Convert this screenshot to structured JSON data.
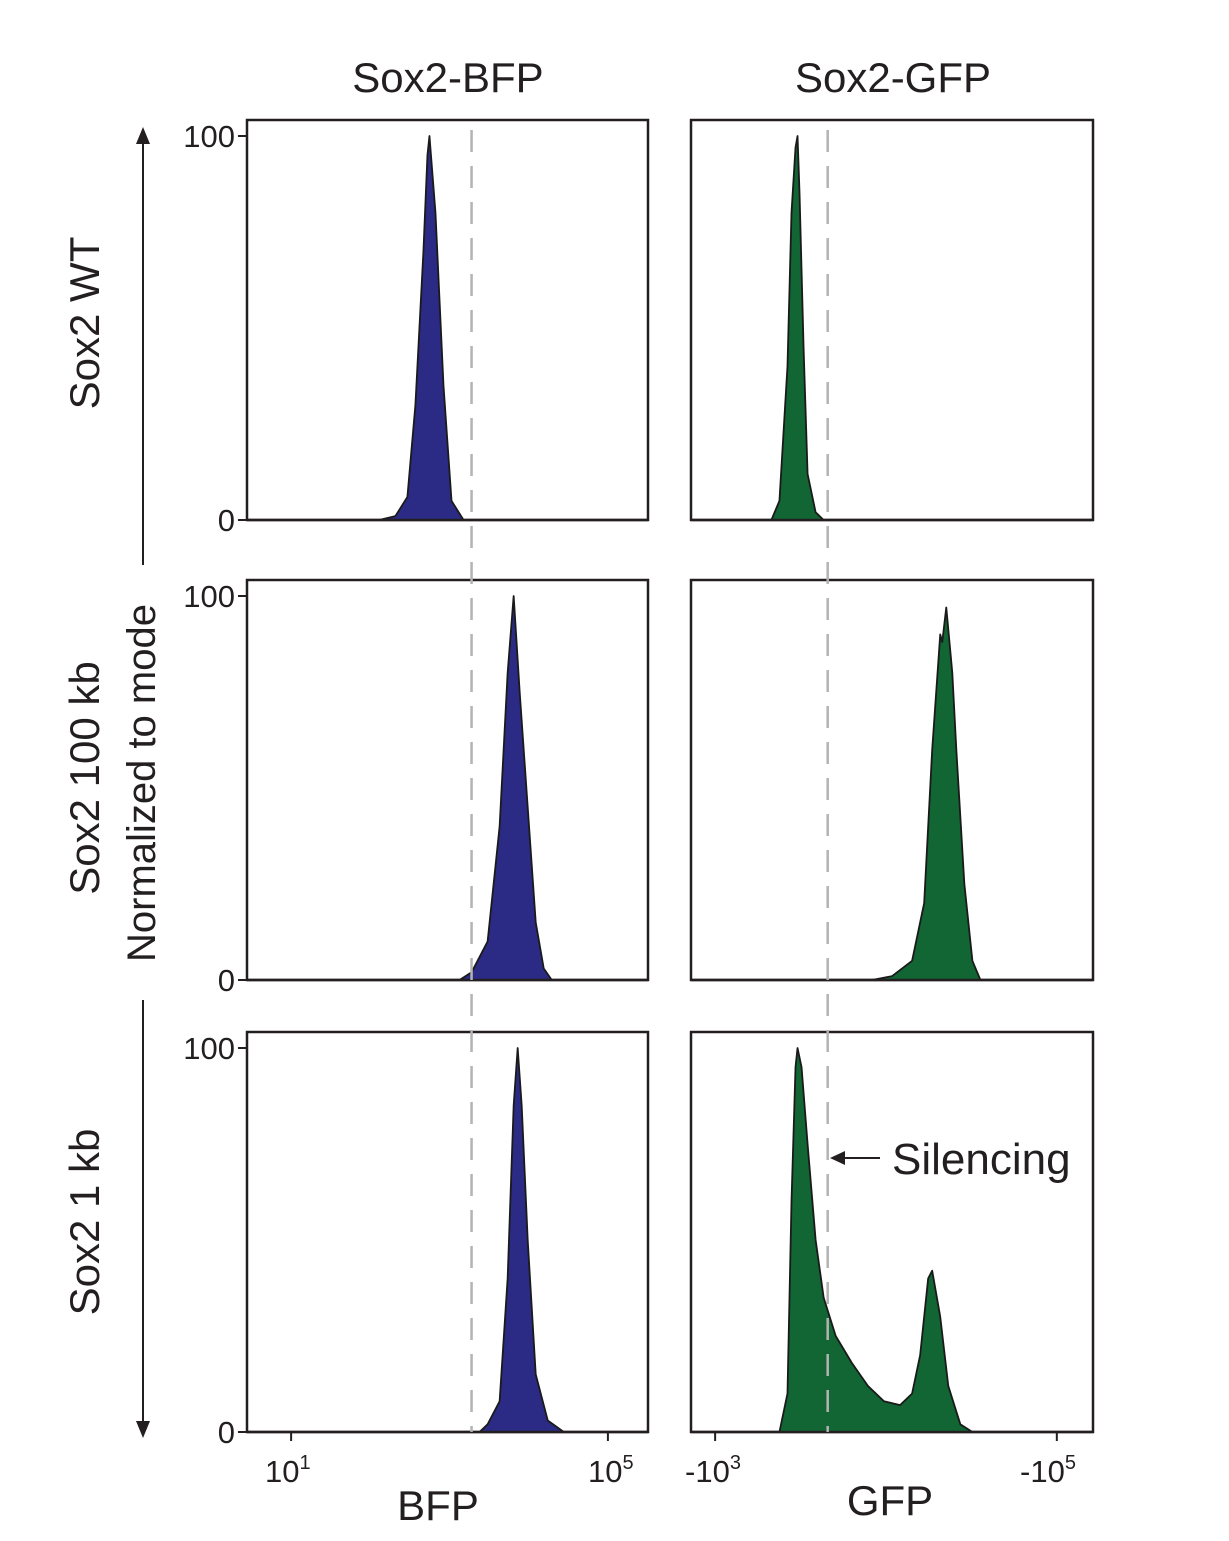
{
  "figure": {
    "columns": [
      "Sox2-BFP",
      "Sox2-GFP"
    ],
    "rows": [
      "Sox2 WT",
      "Sox2 100 kb",
      "Sox2 1 kb"
    ],
    "y_axis_title": "Normalized to mode",
    "y_ticks": [
      "0",
      "100"
    ],
    "x_axis": {
      "bfp": {
        "title": "BFP",
        "tick_left": {
          "base": "10",
          "exp": "1"
        },
        "tick_right": {
          "base": "10",
          "exp": "5"
        }
      },
      "gfp": {
        "title": "GFP",
        "tick_left": {
          "base": "-10",
          "exp": "3"
        },
        "tick_right": {
          "base": "-10",
          "exp": "5"
        }
      }
    },
    "annotation": "Silencing"
  },
  "colors": {
    "bfp_fill": "#2b2b86",
    "gfp_fill": "#116633",
    "outline": "#1a1a1a",
    "threshold_line": "#b3b3b3",
    "text": "#231f20"
  },
  "chart_data": [
    {
      "type": "area",
      "row": "Sox2 WT",
      "column": "Sox2-BFP",
      "color": "bfp",
      "x": [
        0.33,
        0.37,
        0.4,
        0.42,
        0.44,
        0.45,
        0.455,
        0.47,
        0.49,
        0.51,
        0.54
      ],
      "y": [
        0,
        1,
        6,
        30,
        70,
        95,
        100,
        80,
        35,
        5,
        0
      ],
      "ylim": [
        0,
        100
      ],
      "threshold": 0.56
    },
    {
      "type": "area",
      "row": "Sox2 WT",
      "column": "Sox2-GFP",
      "color": "gfp",
      "x": [
        0.2,
        0.22,
        0.24,
        0.25,
        0.26,
        0.265,
        0.27,
        0.28,
        0.29,
        0.31,
        0.33
      ],
      "y": [
        0,
        5,
        40,
        80,
        97,
        100,
        85,
        45,
        12,
        2,
        0
      ],
      "ylim": [
        0,
        100
      ],
      "threshold": 0.34
    },
    {
      "type": "area",
      "row": "Sox2 100 kb",
      "column": "Sox2-BFP",
      "color": "bfp",
      "x": [
        0.53,
        0.56,
        0.6,
        0.63,
        0.65,
        0.665,
        0.68,
        0.7,
        0.72,
        0.74,
        0.76
      ],
      "y": [
        0,
        2,
        10,
        40,
        80,
        100,
        75,
        45,
        15,
        3,
        0
      ],
      "ylim": [
        0,
        100
      ],
      "threshold": 0.56
    },
    {
      "type": "area",
      "row": "Sox2 100 kb",
      "column": "Sox2-GFP",
      "color": "gfp",
      "x": [
        0.45,
        0.5,
        0.55,
        0.58,
        0.6,
        0.62,
        0.625,
        0.635,
        0.65,
        0.66,
        0.68,
        0.7,
        0.72
      ],
      "y": [
        0,
        1,
        5,
        20,
        60,
        90,
        88,
        97,
        80,
        60,
        25,
        5,
        0
      ],
      "ylim": [
        0,
        100
      ],
      "threshold": 0.34
    },
    {
      "type": "area",
      "row": "Sox2 1 kb",
      "column": "Sox2-BFP",
      "color": "bfp",
      "x": [
        0.58,
        0.6,
        0.63,
        0.65,
        0.665,
        0.675,
        0.685,
        0.7,
        0.72,
        0.75,
        0.79
      ],
      "y": [
        0,
        2,
        8,
        40,
        85,
        100,
        85,
        50,
        15,
        3,
        0
      ],
      "ylim": [
        0,
        100
      ],
      "threshold": 0.56
    },
    {
      "type": "area",
      "row": "Sox2 1 kb",
      "column": "Sox2-GFP",
      "color": "gfp",
      "x": [
        0.22,
        0.24,
        0.25,
        0.26,
        0.265,
        0.275,
        0.29,
        0.31,
        0.33,
        0.36,
        0.4,
        0.44,
        0.48,
        0.52,
        0.55,
        0.57,
        0.59,
        0.6,
        0.62,
        0.64,
        0.67,
        0.7,
        0.75
      ],
      "y": [
        0,
        10,
        60,
        95,
        100,
        95,
        75,
        50,
        35,
        25,
        18,
        12,
        8,
        7,
        10,
        20,
        40,
        42,
        30,
        12,
        2,
        0,
        0
      ],
      "ylim": [
        0,
        100
      ],
      "threshold": 0.34
    }
  ]
}
